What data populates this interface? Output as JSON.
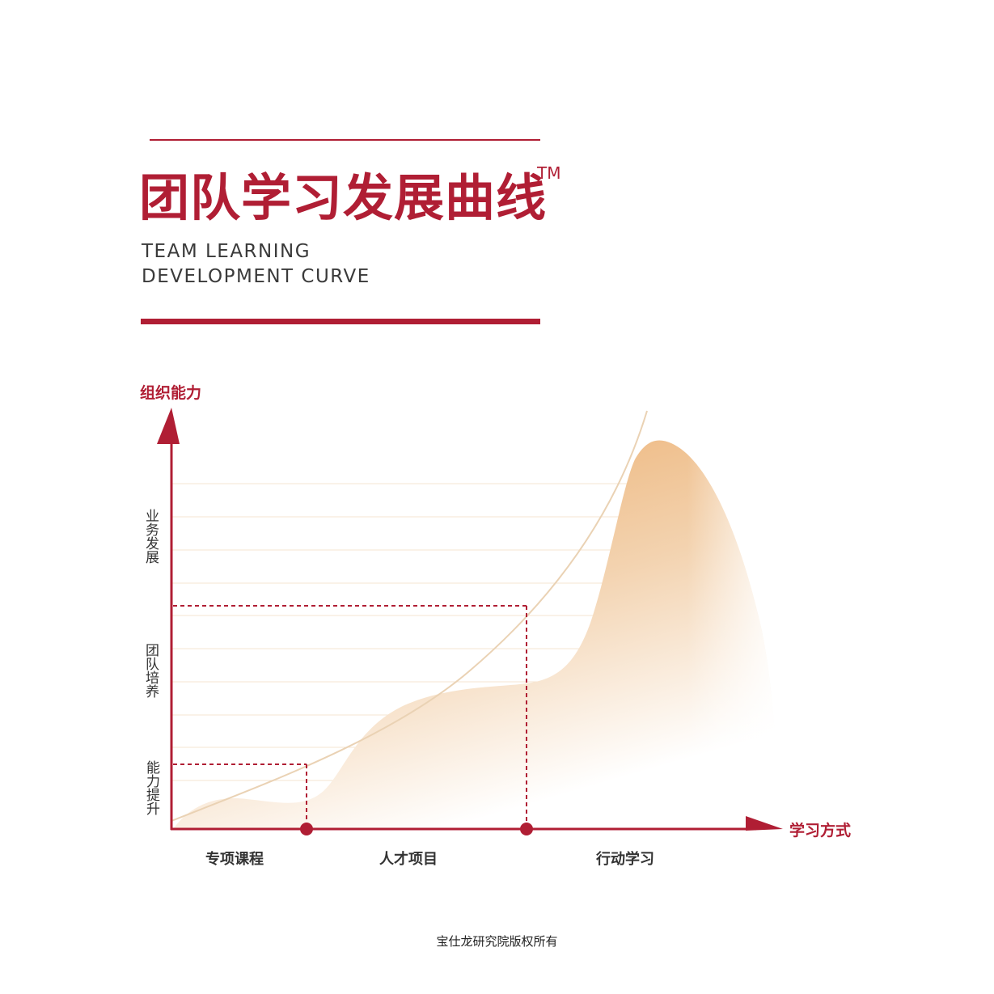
{
  "header": {
    "title_cn": "团队学习发展曲线",
    "trademark": "TM",
    "title_en_line1": "TEAM LEARNING",
    "title_en_line2": "DEVELOPMENT CURVE"
  },
  "diagram": {
    "y_axis_title": "组织能力",
    "x_axis_title": "学习方式",
    "y_levels": [
      "能力提升",
      "团队培养",
      "业务发展"
    ],
    "x_stages": [
      "专项课程",
      "人才项目",
      "行动学习"
    ],
    "colors": {
      "accent": "#b01e34",
      "curve": "#ead2b4",
      "area_top": "#eba965",
      "area_fade": "#ffffff",
      "grid": "#f5e4d2"
    }
  },
  "footer": {
    "copyright": "宝仕龙研究院版权所有"
  }
}
